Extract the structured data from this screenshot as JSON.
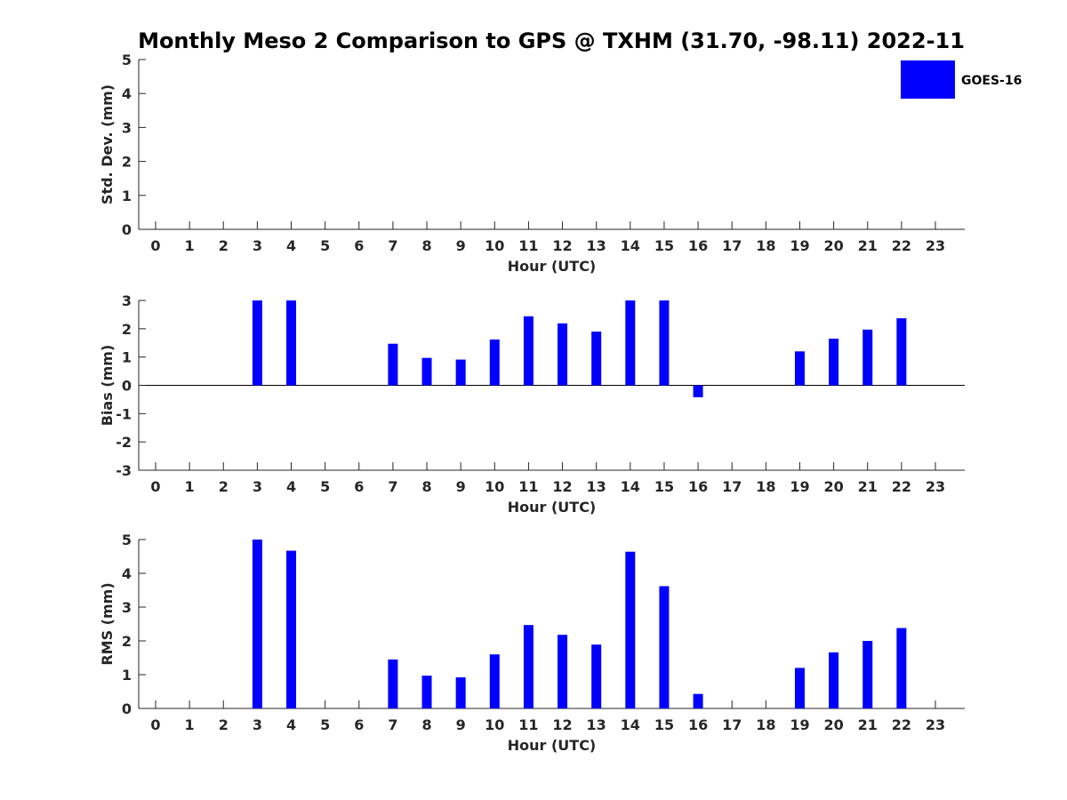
{
  "title": "Monthly Meso 2 Comparison to GPS @ TXHM (31.70, -98.11) 2022-11",
  "legend": {
    "label": "GOES-16",
    "color": "#0000ff",
    "position": "top-right"
  },
  "chart_data": [
    {
      "type": "bar",
      "ylabel": "Std. Dev. (mm)",
      "xlabel": "Hour (UTC)",
      "ylim": [
        0,
        5
      ],
      "yticks": [
        "0",
        "1",
        "2",
        "3",
        "4",
        "5"
      ],
      "categories": [
        "0",
        "1",
        "2",
        "3",
        "4",
        "5",
        "6",
        "7",
        "8",
        "9",
        "10",
        "11",
        "12",
        "13",
        "14",
        "15",
        "16",
        "17",
        "18",
        "19",
        "20",
        "21",
        "22",
        "23"
      ],
      "values": [
        null,
        null,
        null,
        null,
        null,
        null,
        null,
        null,
        null,
        null,
        null,
        null,
        null,
        null,
        null,
        null,
        null,
        null,
        null,
        null,
        null,
        null,
        null,
        null
      ]
    },
    {
      "type": "bar",
      "ylabel": "Bias (mm)",
      "xlabel": "Hour (UTC)",
      "ylim": [
        -3,
        3
      ],
      "yticks": [
        "-3",
        "-2",
        "-1",
        "0",
        "1",
        "2",
        "3"
      ],
      "categories": [
        "0",
        "1",
        "2",
        "3",
        "4",
        "5",
        "6",
        "7",
        "8",
        "9",
        "10",
        "11",
        "12",
        "13",
        "14",
        "15",
        "16",
        "17",
        "18",
        "19",
        "20",
        "21",
        "22",
        "23"
      ],
      "values": [
        null,
        null,
        null,
        3.0,
        3.0,
        null,
        null,
        1.47,
        0.97,
        0.91,
        1.62,
        2.44,
        2.19,
        1.9,
        3.0,
        3.0,
        -0.42,
        null,
        null,
        1.2,
        1.65,
        1.97,
        2.37,
        null
      ]
    },
    {
      "type": "bar",
      "ylabel": "RMS (mm)",
      "xlabel": "Hour (UTC)",
      "ylim": [
        0,
        5
      ],
      "yticks": [
        "0",
        "1",
        "2",
        "3",
        "4",
        "5"
      ],
      "categories": [
        "0",
        "1",
        "2",
        "3",
        "4",
        "5",
        "6",
        "7",
        "8",
        "9",
        "10",
        "11",
        "12",
        "13",
        "14",
        "15",
        "16",
        "17",
        "18",
        "19",
        "20",
        "21",
        "22",
        "23"
      ],
      "values": [
        null,
        null,
        null,
        5.0,
        4.67,
        null,
        null,
        1.45,
        0.97,
        0.92,
        1.6,
        2.47,
        2.18,
        1.89,
        4.64,
        3.62,
        0.43,
        null,
        null,
        1.2,
        1.66,
        2.0,
        2.38,
        null
      ]
    }
  ]
}
